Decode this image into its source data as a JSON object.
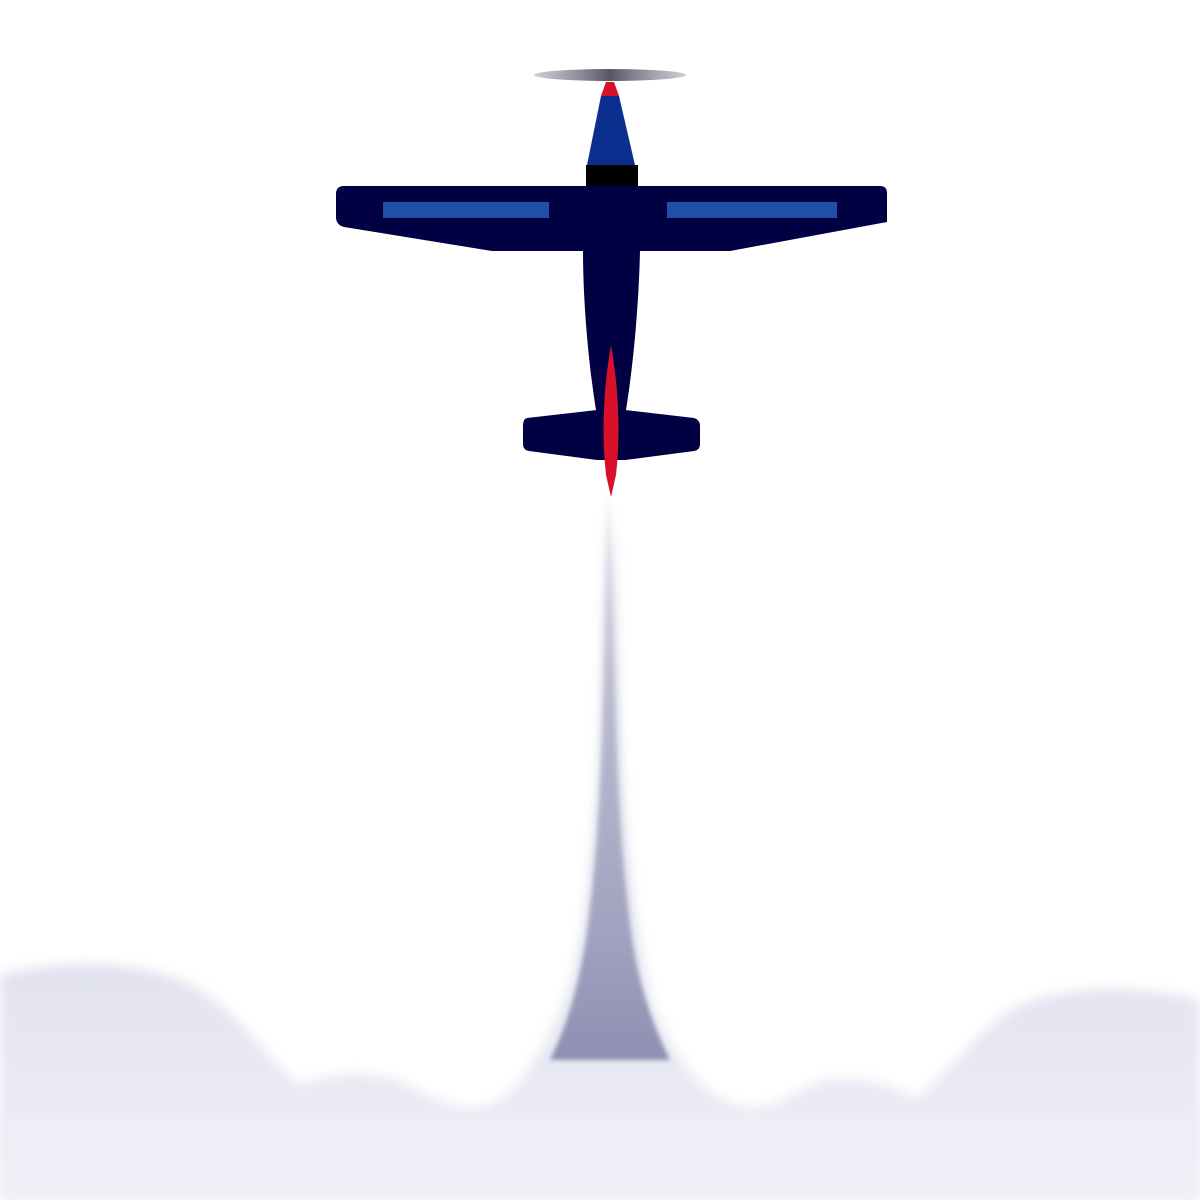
{
  "scene": {
    "subject": "airplane",
    "view": "top-down",
    "direction": "upward",
    "trail": "smoke",
    "trail_shape": "columns into clouds",
    "colors": {
      "background": "#ffffff",
      "fuselage": "#000042",
      "wing_stripe": "#1f4fa8",
      "cowling": "#0b2f8f",
      "engine_ring": "#000000",
      "spinner": "#d8102a",
      "propeller": "#8a8a9a",
      "tail_stripe": "#d8102a",
      "smoke": "#8e8fb2",
      "cloud_base": "#e9eaf5"
    }
  }
}
